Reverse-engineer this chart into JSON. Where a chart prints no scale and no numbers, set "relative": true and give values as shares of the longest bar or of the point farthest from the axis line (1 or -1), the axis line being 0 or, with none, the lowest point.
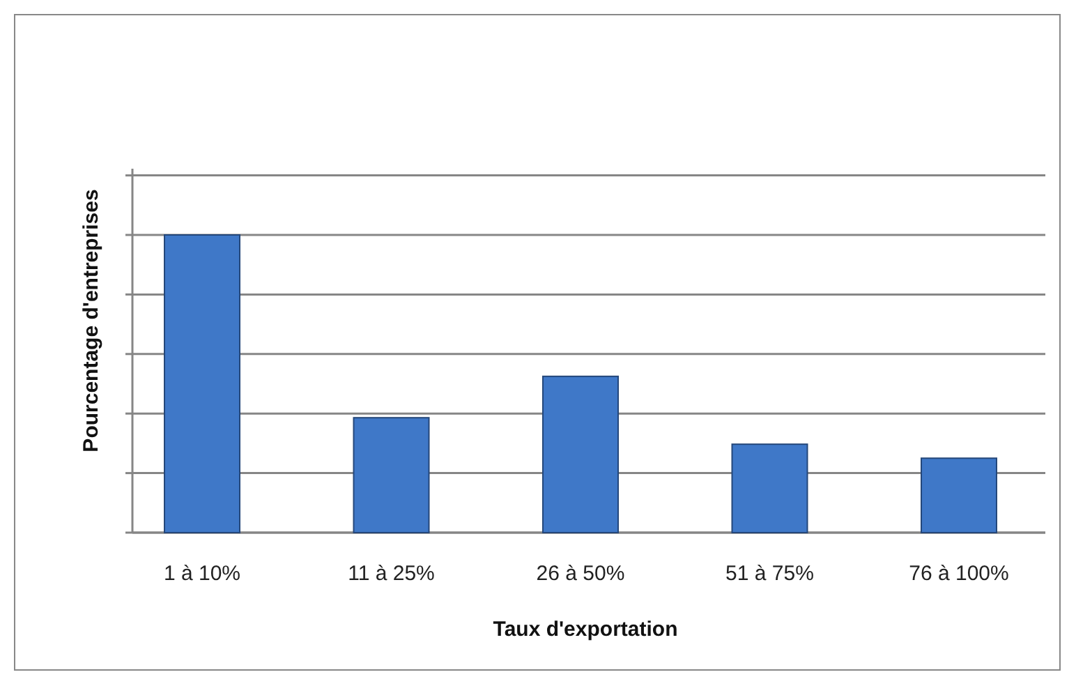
{
  "chart_data": {
    "type": "bar",
    "xlabel": "Taux d'exportation",
    "ylabel": "Pourcentage d'entreprises",
    "categories": [
      "1 à 10%",
      "11 à 25%",
      "26 à 50%",
      "51 à 75%",
      "76 à 100%"
    ],
    "values": [
      1,
      0.386,
      0.525,
      0.297,
      0.25
    ],
    "color": "#3f78c8",
    "relative": true,
    "grid": "y",
    "tick_labels": "x"
  }
}
